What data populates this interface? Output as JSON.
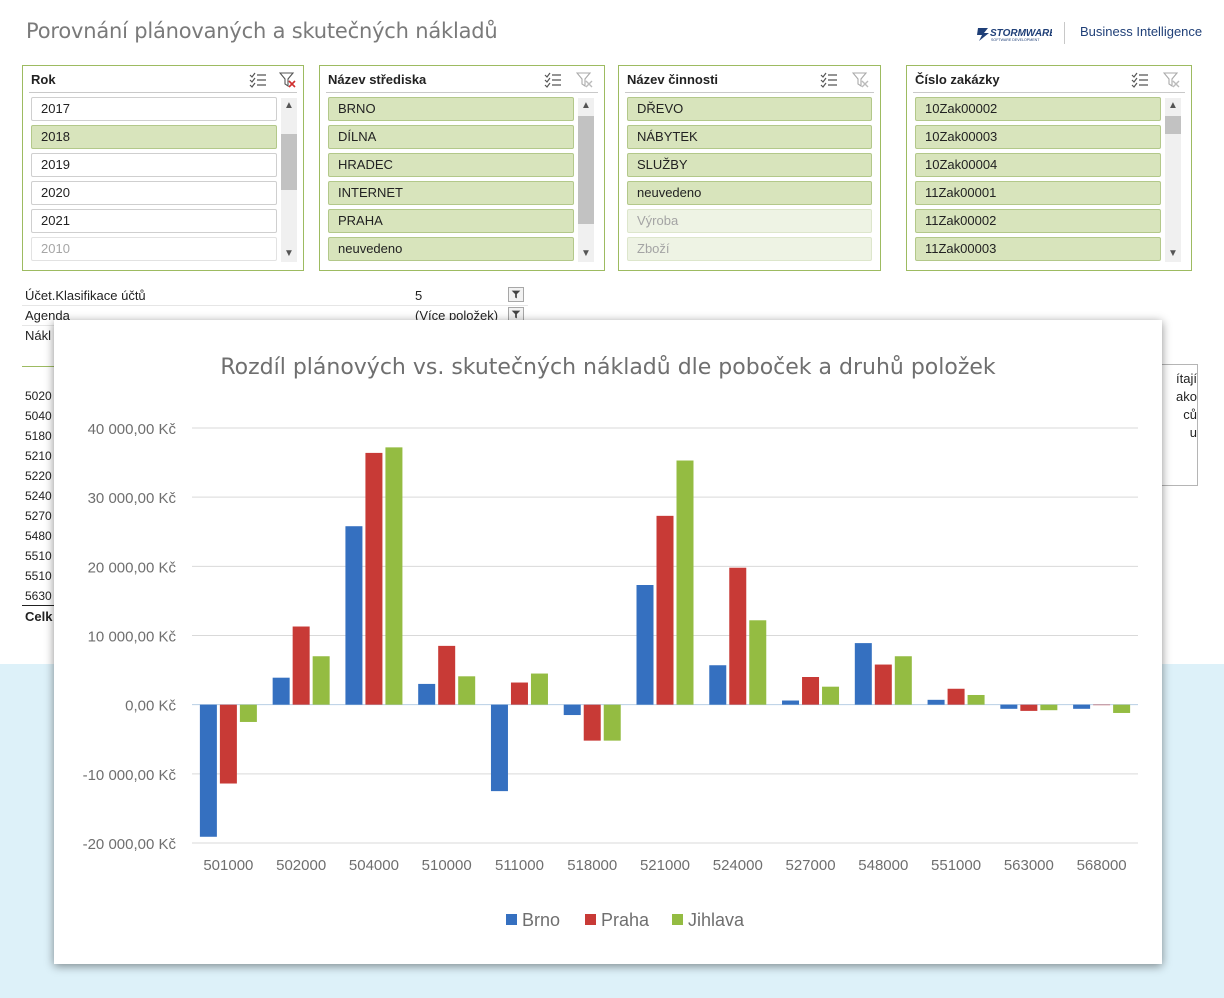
{
  "page": {
    "title": "Porovnání plánovaných a skutečných nákladů"
  },
  "brand": {
    "logo_text": "STORMWARE",
    "logo_sub": "SOFTWARE DEVELOPMENT",
    "bi_label": "Business Intelligence",
    "logo_color": "#1f3f77"
  },
  "colors": {
    "accent_green": "#9dbb61",
    "selected_item": "#d8e4bc",
    "background_band": "#ddf1f9"
  },
  "slicers": [
    {
      "header": "Rok",
      "multiselect_icon": "multi-select-icon",
      "clear_icon": "clear-filter-icon",
      "clear_active": true,
      "items": [
        {
          "label": "2017",
          "state": "unsel"
        },
        {
          "label": "2018",
          "state": "sel"
        },
        {
          "label": "2019",
          "state": "unsel"
        },
        {
          "label": "2020",
          "state": "unsel"
        },
        {
          "label": "2021",
          "state": "unsel"
        },
        {
          "label": "2010",
          "state": "nodata"
        }
      ],
      "scrollbar": true
    },
    {
      "header": "Název střediska",
      "multiselect_icon": "multi-select-icon",
      "clear_icon": "clear-filter-icon",
      "clear_active": false,
      "items": [
        {
          "label": "BRNO",
          "state": "sel"
        },
        {
          "label": "DÍLNA",
          "state": "sel"
        },
        {
          "label": "HRADEC",
          "state": "sel"
        },
        {
          "label": "INTERNET",
          "state": "sel"
        },
        {
          "label": "PRAHA",
          "state": "sel"
        },
        {
          "label": "neuvedeno",
          "state": "sel"
        }
      ],
      "scrollbar": true
    },
    {
      "header": "Název činnosti",
      "multiselect_icon": "multi-select-icon",
      "clear_icon": "clear-filter-icon",
      "clear_active": false,
      "items": [
        {
          "label": "DŘEVO",
          "state": "sel"
        },
        {
          "label": "NÁBYTEK",
          "state": "sel"
        },
        {
          "label": "SLUŽBY",
          "state": "sel"
        },
        {
          "label": "neuvedeno",
          "state": "sel"
        },
        {
          "label": "Výroba",
          "state": "nodata-sel"
        },
        {
          "label": "Zboží",
          "state": "nodata-sel"
        }
      ],
      "scrollbar": false
    },
    {
      "header": "Číslo zakázky",
      "multiselect_icon": "multi-select-icon",
      "clear_icon": "clear-filter-icon",
      "clear_active": false,
      "items": [
        {
          "label": "10Zak00002",
          "state": "sel"
        },
        {
          "label": "10Zak00003",
          "state": "sel"
        },
        {
          "label": "10Zak00004",
          "state": "sel"
        },
        {
          "label": "11Zak00001",
          "state": "sel"
        },
        {
          "label": "11Zak00002",
          "state": "sel"
        },
        {
          "label": "11Zak00003",
          "state": "sel"
        }
      ],
      "scrollbar": true
    }
  ],
  "page_filters": [
    {
      "label": "Účet.Klasifikace účtů",
      "value": "5"
    },
    {
      "label": "Agenda",
      "value": "(Více položek)"
    },
    {
      "label": "Nákl",
      "value": ""
    }
  ],
  "account_rows": [
    "5020",
    "5040",
    "5180",
    "5210",
    "5220",
    "5240",
    "5270",
    "5480",
    "5510",
    "5510",
    "5630"
  ],
  "total_label": "Celk",
  "side_note": [
    "ítají",
    "ako",
    "ců",
    "u"
  ],
  "chart_data": {
    "type": "bar",
    "title": "Rozdíl plánových vs. skutečných nákladů dle poboček a druhů položek",
    "categories": [
      "501000",
      "502000",
      "504000",
      "510000",
      "511000",
      "518000",
      "521000",
      "524000",
      "527000",
      "548000",
      "551000",
      "563000",
      "568000"
    ],
    "series": [
      {
        "name": "Brno",
        "color": "#3570c0",
        "values": [
          -19100,
          3900,
          25800,
          3000,
          -12500,
          -1500,
          17300,
          5700,
          600,
          8900,
          700,
          -600,
          -600
        ]
      },
      {
        "name": "Praha",
        "color": "#c83a36",
        "values": [
          -11400,
          11300,
          36400,
          8500,
          3200,
          -5200,
          27300,
          19800,
          4000,
          5800,
          2300,
          -900,
          0
        ]
      },
      {
        "name": "Jihlava",
        "color": "#94bc42",
        "values": [
          -2500,
          7000,
          37200,
          4100,
          4500,
          -5200,
          35300,
          12200,
          2600,
          7000,
          1400,
          -800,
          -1200
        ]
      }
    ],
    "ylim": [
      -20000,
      40000
    ],
    "yticks": [
      -20000,
      -10000,
      0,
      10000,
      20000,
      30000,
      40000
    ],
    "ytick_labels": [
      "-20 000,00 Kč",
      "-10 000,00 Kč",
      "0,00 Kč",
      "10 000,00 Kč",
      "20 000,00 Kč",
      "30 000,00 Kč",
      "40 000,00 Kč"
    ],
    "grid": true,
    "legend": "bottom"
  }
}
